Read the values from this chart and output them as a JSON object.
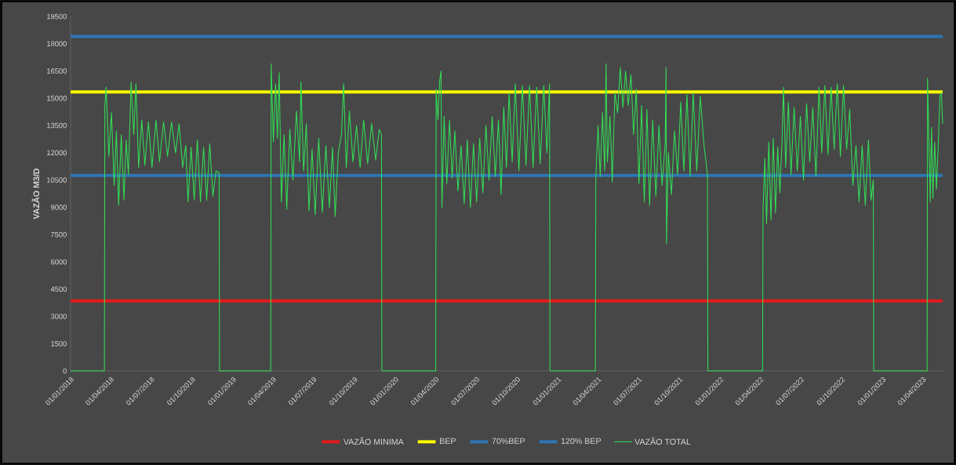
{
  "chart_data": {
    "type": "line",
    "ylabel": "VAZÃO M3/D",
    "xlim": [
      "2018-01-01",
      "2023-05-16"
    ],
    "ylim": [
      0,
      19500
    ],
    "xticks": [
      {
        "value": "2018-01-01",
        "label": "01/01/2018"
      },
      {
        "value": "2018-04-01",
        "label": "01/04/2018"
      },
      {
        "value": "2018-07-01",
        "label": "01/07/2018"
      },
      {
        "value": "2018-10-01",
        "label": "01/10/2018"
      },
      {
        "value": "2019-01-01",
        "label": "01/01/2019"
      },
      {
        "value": "2019-04-01",
        "label": "01/04/2019"
      },
      {
        "value": "2019-07-01",
        "label": "01/07/2019"
      },
      {
        "value": "2019-10-01",
        "label": "01/10/2019"
      },
      {
        "value": "2020-01-01",
        "label": "01/01/2020"
      },
      {
        "value": "2020-04-01",
        "label": "01/04/2020"
      },
      {
        "value": "2020-07-01",
        "label": "01/07/2020"
      },
      {
        "value": "2020-10-01",
        "label": "01/10/2020"
      },
      {
        "value": "2021-01-01",
        "label": "01/01/2021"
      },
      {
        "value": "2021-04-01",
        "label": "01/04/2021"
      },
      {
        "value": "2021-07-01",
        "label": "01/07/2021"
      },
      {
        "value": "2021-10-01",
        "label": "01/10/2021"
      },
      {
        "value": "2022-01-01",
        "label": "01/01/2022"
      },
      {
        "value": "2022-04-01",
        "label": "01/04/2022"
      },
      {
        "value": "2022-07-01",
        "label": "01/07/2022"
      },
      {
        "value": "2022-10-01",
        "label": "01/10/2022"
      },
      {
        "value": "2023-01-01",
        "label": "01/01/2023"
      },
      {
        "value": "2023-04-01",
        "label": "01/04/2023"
      }
    ],
    "yticks": [
      0,
      1500,
      3000,
      4500,
      6000,
      7500,
      9000,
      10500,
      12000,
      13500,
      15000,
      16500,
      18000,
      19500
    ],
    "legend": "bottom",
    "ref_lines": [
      {
        "axis": "y",
        "value": 3850,
        "label": "VAZÃO MINIMA",
        "color": "#e31a1c"
      },
      {
        "axis": "y",
        "value": 15350,
        "label": "BEP",
        "color": "#ffff00"
      },
      {
        "axis": "y",
        "value": 10750,
        "label": "70%BEP",
        "color": "#2e75b6"
      },
      {
        "axis": "y",
        "value": 18400,
        "label": "120% BEP",
        "color": "#2e75b6"
      }
    ],
    "series": [
      {
        "name": "VAZÃO TOTAL",
        "color": "#33dd55",
        "x": [
          "2018-01-01",
          "2018-03-18",
          "2018-03-19",
          "2018-03-22",
          "2018-03-28",
          "2018-04-03",
          "2018-04-09",
          "2018-04-14",
          "2018-04-19",
          "2018-04-25",
          "2018-05-01",
          "2018-05-06",
          "2018-05-11",
          "2018-05-17",
          "2018-05-23",
          "2018-05-28",
          "2018-06-03",
          "2018-06-10",
          "2018-06-17",
          "2018-06-25",
          "2018-07-03",
          "2018-07-12",
          "2018-07-20",
          "2018-07-29",
          "2018-08-07",
          "2018-08-16",
          "2018-08-25",
          "2018-09-02",
          "2018-09-10",
          "2018-09-17",
          "2018-09-22",
          "2018-09-29",
          "2018-10-06",
          "2018-10-13",
          "2018-10-20",
          "2018-10-27",
          "2018-11-03",
          "2018-11-10",
          "2018-11-17",
          "2018-11-24",
          "2018-12-01",
          "2018-12-02",
          "2019-03-27",
          "2019-03-28",
          "2019-04-02",
          "2019-04-07",
          "2019-04-11",
          "2019-04-15",
          "2019-04-20",
          "2019-04-26",
          "2019-05-02",
          "2019-05-09",
          "2019-05-16",
          "2019-05-24",
          "2019-05-31",
          "2019-06-03",
          "2019-06-09",
          "2019-06-15",
          "2019-06-21",
          "2019-06-28",
          "2019-07-05",
          "2019-07-13",
          "2019-07-21",
          "2019-07-29",
          "2019-08-06",
          "2019-08-13",
          "2019-08-19",
          "2019-08-26",
          "2019-09-02",
          "2019-09-07",
          "2019-09-13",
          "2019-09-20",
          "2019-09-28",
          "2019-10-06",
          "2019-10-14",
          "2019-10-22",
          "2019-10-31",
          "2019-11-09",
          "2019-11-18",
          "2019-11-26",
          "2019-12-01",
          "2019-12-02",
          "2020-04-01",
          "2020-04-02",
          "2020-04-06",
          "2020-04-10",
          "2020-04-13",
          "2020-04-15",
          "2020-04-20",
          "2020-04-26",
          "2020-05-02",
          "2020-05-08",
          "2020-05-14",
          "2020-05-21",
          "2020-05-28",
          "2020-06-04",
          "2020-06-11",
          "2020-06-18",
          "2020-06-25",
          "2020-07-02",
          "2020-07-09",
          "2020-07-16",
          "2020-07-23",
          "2020-07-30",
          "2020-08-06",
          "2020-08-13",
          "2020-08-20",
          "2020-08-26",
          "2020-09-01",
          "2020-09-07",
          "2020-09-13",
          "2020-09-20",
          "2020-09-27",
          "2020-10-05",
          "2020-10-13",
          "2020-10-21",
          "2020-10-29",
          "2020-11-06",
          "2020-11-14",
          "2020-11-22",
          "2020-11-30",
          "2020-12-07",
          "2020-12-13",
          "2020-12-14",
          "2021-03-26",
          "2021-03-27",
          "2021-04-01",
          "2021-04-06",
          "2021-04-11",
          "2021-04-16",
          "2021-04-19",
          "2021-04-22",
          "2021-04-28",
          "2021-05-03",
          "2021-05-09",
          "2021-05-15",
          "2021-05-21",
          "2021-05-27",
          "2021-06-02",
          "2021-06-08",
          "2021-06-14",
          "2021-06-20",
          "2021-06-26",
          "2021-07-02",
          "2021-07-08",
          "2021-07-14",
          "2021-07-20",
          "2021-07-26",
          "2021-08-02",
          "2021-08-09",
          "2021-08-16",
          "2021-08-23",
          "2021-08-30",
          "2021-09-01",
          "2021-09-02",
          "2021-09-06",
          "2021-09-13",
          "2021-09-20",
          "2021-09-27",
          "2021-10-04",
          "2021-10-11",
          "2021-10-18",
          "2021-10-25",
          "2021-11-01",
          "2021-11-09",
          "2021-11-17",
          "2021-11-25",
          "2021-12-03",
          "2021-12-04",
          "2022-04-06",
          "2022-04-07",
          "2022-04-11",
          "2022-04-15",
          "2022-04-20",
          "2022-04-25",
          "2022-04-30",
          "2022-05-05",
          "2022-05-10",
          "2022-05-15",
          "2022-05-20",
          "2022-05-23",
          "2022-05-28",
          "2022-06-03",
          "2022-06-09",
          "2022-06-16",
          "2022-06-23",
          "2022-06-30",
          "2022-07-07",
          "2022-07-14",
          "2022-07-21",
          "2022-07-28",
          "2022-08-04",
          "2022-08-11",
          "2022-08-17",
          "2022-08-24",
          "2022-08-31",
          "2022-09-07",
          "2022-09-14",
          "2022-09-21",
          "2022-09-28",
          "2022-10-05",
          "2022-10-12",
          "2022-10-19",
          "2022-10-26",
          "2022-11-02",
          "2022-11-09",
          "2022-11-16",
          "2022-11-23",
          "2022-11-30",
          "2022-12-06",
          "2022-12-11",
          "2022-12-12",
          "2023-04-11",
          "2023-04-12",
          "2023-04-15",
          "2023-04-18",
          "2023-04-21",
          "2023-04-24",
          "2023-04-28",
          "2023-05-02",
          "2023-05-06",
          "2023-05-10",
          "2023-05-13",
          "2023-05-16"
        ],
        "values": [
          0,
          0,
          14500,
          15600,
          11800,
          14200,
          10200,
          13200,
          9100,
          13000,
          9400,
          12700,
          10800,
          15900,
          13000,
          15800,
          11200,
          13800,
          11300,
          13700,
          11200,
          13800,
          11500,
          13700,
          11800,
          13700,
          12000,
          13600,
          11200,
          12400,
          9300,
          12300,
          9400,
          12700,
          9300,
          12300,
          9400,
          12500,
          9600,
          11000,
          10900,
          0,
          0,
          16900,
          12600,
          15800,
          12800,
          16400,
          9300,
          13000,
          8900,
          13300,
          10500,
          14300,
          11500,
          15900,
          11000,
          13600,
          8800,
          12200,
          8600,
          12800,
          8700,
          12400,
          9000,
          12300,
          8500,
          12000,
          13000,
          15800,
          11200,
          14300,
          11500,
          13500,
          11200,
          13800,
          11400,
          13600,
          11600,
          13300,
          13000,
          0,
          0,
          15500,
          13800,
          16000,
          16500,
          9000,
          14000,
          10300,
          13800,
          10600,
          13200,
          9900,
          12400,
          9200,
          12700,
          9000,
          12500,
          9300,
          12800,
          9800,
          13500,
          10500,
          14000,
          10700,
          13800,
          9700,
          14500,
          11200,
          15300,
          11500,
          15800,
          11000,
          15700,
          11300,
          15700,
          11200,
          15600,
          11400,
          15700,
          12000,
          15800,
          0,
          0,
          10500,
          13500,
          10700,
          14200,
          11000,
          16900,
          11500,
          14000,
          10400,
          15300,
          14200,
          16700,
          14500,
          16500,
          14600,
          16300,
          13000,
          15500,
          10300,
          14600,
          9300,
          14400,
          9100,
          13800,
          9600,
          13500,
          10200,
          12500,
          16700,
          7000,
          12000,
          9700,
          13200,
          10800,
          14800,
          11000,
          15200,
          10700,
          15300,
          11000,
          15100,
          12500,
          10800,
          0,
          0,
          8800,
          11700,
          8100,
          12600,
          8300,
          12800,
          8700,
          12300,
          9800,
          12800,
          15600,
          11200,
          14800,
          10800,
          14500,
          11000,
          14000,
          10500,
          14700,
          11500,
          14500,
          10700,
          15600,
          12000,
          15700,
          11900,
          15600,
          12200,
          15800,
          11800,
          15700,
          12200,
          14400,
          10200,
          12400,
          9300,
          12400,
          9100,
          12700,
          9400,
          10500,
          0,
          0,
          16100,
          12800,
          9300,
          13400,
          9500,
          12600,
          10000,
          12400,
          15200,
          15300,
          13600
        ]
      }
    ]
  }
}
